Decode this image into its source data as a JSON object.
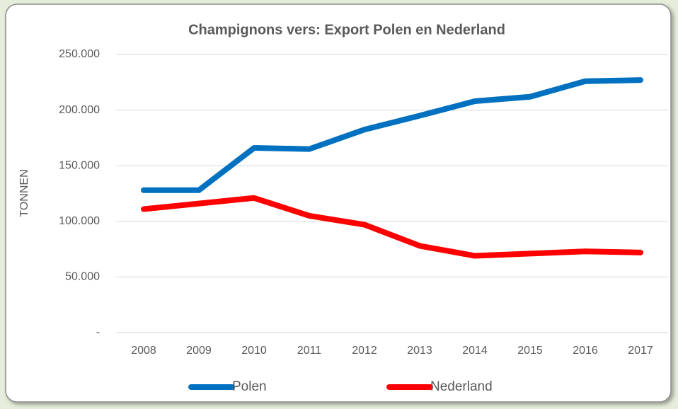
{
  "chart_data": {
    "type": "line",
    "title": "Champignons vers: Export Polen en Nederland",
    "y_label": "TONNEN",
    "categories": [
      "2008",
      "2009",
      "2010",
      "2011",
      "2012",
      "2013",
      "2014",
      "2015",
      "2016",
      "2017"
    ],
    "series": [
      {
        "name": "Polen",
        "color": "#0070c0",
        "values": [
          128000,
          128000,
          166000,
          165000,
          182500,
          195000,
          208000,
          212000,
          226000,
          227000
        ]
      },
      {
        "name": "Nederland",
        "color": "#ff0000",
        "values": [
          111000,
          116000,
          121000,
          105000,
          97000,
          78000,
          69000,
          71000,
          73000,
          72000
        ]
      }
    ],
    "ylim": [
      0,
      250000
    ],
    "yticks": [
      {
        "value": 0,
        "label": "-"
      },
      {
        "value": 50000,
        "label": "50.000"
      },
      {
        "value": 100000,
        "label": "100.000"
      },
      {
        "value": 150000,
        "label": "150.000"
      },
      {
        "value": 200000,
        "label": "200.000"
      },
      {
        "value": 250000,
        "label": "250.000"
      }
    ],
    "grid": true,
    "legend": "bottom"
  }
}
